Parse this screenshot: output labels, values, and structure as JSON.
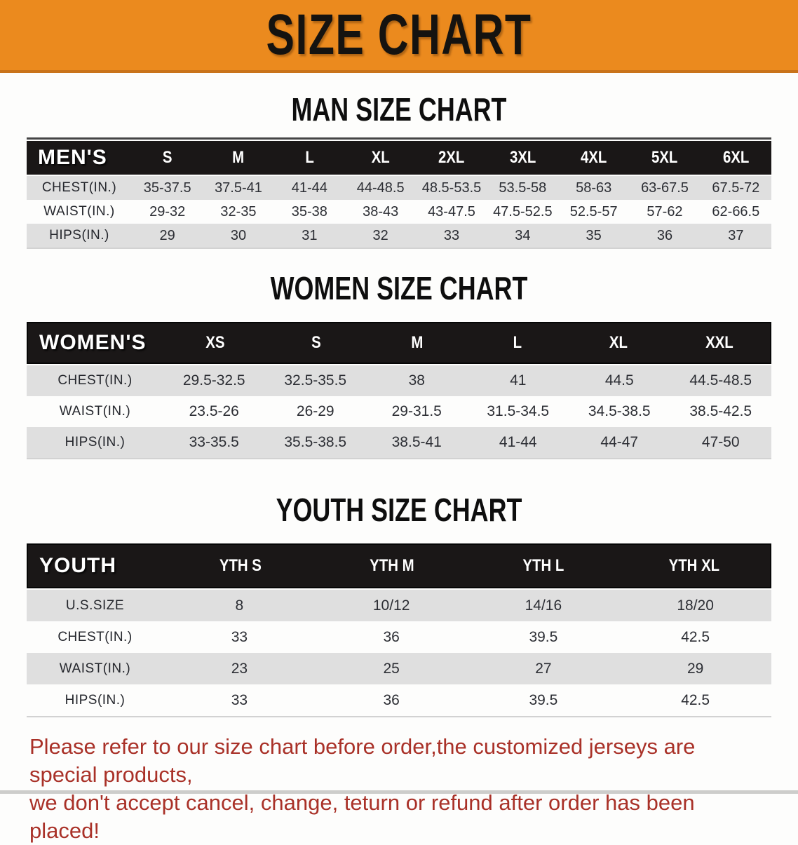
{
  "banner": {
    "title": "SIZE CHART"
  },
  "colors": {
    "banner_bg": "#EB8A1E",
    "banner_edge": "#C9731A",
    "header_bar": "#1A1717",
    "row_alt": "#DFDFDF",
    "footer_text": "#A93128"
  },
  "chart_data": [
    {
      "type": "table",
      "title": "MAN SIZE CHART",
      "corner_label": "MEN'S",
      "columns": [
        "S",
        "M",
        "L",
        "XL",
        "2XL",
        "3XL",
        "4XL",
        "5XL",
        "6XL"
      ],
      "rows": [
        {
          "label": "CHEST(IN.)",
          "values": [
            "35-37.5",
            "37.5-41",
            "41-44",
            "44-48.5",
            "48.5-53.5",
            "53.5-58",
            "58-63",
            "63-67.5",
            "67.5-72"
          ]
        },
        {
          "label": "WAIST(IN.)",
          "values": [
            "29-32",
            "32-35",
            "35-38",
            "38-43",
            "43-47.5",
            "47.5-52.5",
            "52.5-57",
            "57-62",
            "62-66.5"
          ]
        },
        {
          "label": "HIPS(IN.)",
          "values": [
            "29",
            "30",
            "31",
            "32",
            "33",
            "34",
            "35",
            "36",
            "37"
          ]
        }
      ]
    },
    {
      "type": "table",
      "title": "WOMEN SIZE CHART",
      "corner_label": "WOMEN'S",
      "columns": [
        "XS",
        "S",
        "M",
        "L",
        "XL",
        "XXL"
      ],
      "rows": [
        {
          "label": "CHEST(IN.)",
          "values": [
            "29.5-32.5",
            "32.5-35.5",
            "38",
            "41",
            "44.5",
            "44.5-48.5"
          ]
        },
        {
          "label": "WAIST(IN.)",
          "values": [
            "23.5-26",
            "26-29",
            "29-31.5",
            "31.5-34.5",
            "34.5-38.5",
            "38.5-42.5"
          ]
        },
        {
          "label": "HIPS(IN.)",
          "values": [
            "33-35.5",
            "35.5-38.5",
            "38.5-41",
            "41-44",
            "44-47",
            "47-50"
          ]
        }
      ]
    },
    {
      "type": "table",
      "title": "YOUTH SIZE CHART",
      "corner_label": "YOUTH",
      "columns": [
        "YTH S",
        "YTH M",
        "YTH L",
        "YTH XL"
      ],
      "rows": [
        {
          "label": "U.S.SIZE",
          "values": [
            "8",
            "10/12",
            "14/16",
            "18/20"
          ]
        },
        {
          "label": "CHEST(IN.)",
          "values": [
            "33",
            "36",
            "39.5",
            "42.5"
          ]
        },
        {
          "label": "WAIST(IN.)",
          "values": [
            "23",
            "25",
            "27",
            "29"
          ]
        },
        {
          "label": "HIPS(IN.)",
          "values": [
            "33",
            "36",
            "39.5",
            "42.5"
          ]
        }
      ]
    }
  ],
  "footer": {
    "lines": [
      "Please refer to our size chart before order,the customized jerseys are special products,",
      "we don't accept cancel, change, teturn or refund after order has been placed!"
    ]
  }
}
